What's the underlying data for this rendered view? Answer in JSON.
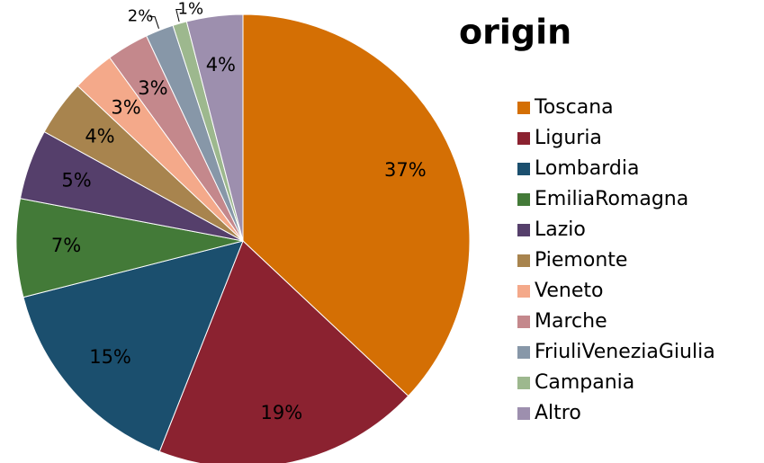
{
  "chart_data": {
    "type": "pie",
    "title": "origin",
    "categories": [
      "Toscana",
      "Liguria",
      "Lombardia",
      "EmiliaRomagna",
      "Lazio",
      "Piemonte",
      "Veneto",
      "Marche",
      "FriuliVeneziaGiulia",
      "Campania",
      "Altro"
    ],
    "values": [
      37,
      19,
      15,
      7,
      5,
      4,
      3,
      3,
      2,
      1,
      4
    ],
    "value_labels": [
      "37%",
      "19%",
      "15%",
      "7%",
      "5%",
      "4%",
      "3%",
      "3%",
      "2%",
      "1%",
      "4%"
    ],
    "colors": [
      "#d46f04",
      "#8b2230",
      "#1b4f6e",
      "#437a38",
      "#553f6b",
      "#a8844e",
      "#f4a98a",
      "#c4888c",
      "#8797a8",
      "#9db88e",
      "#9d8fae"
    ],
    "legend": "right"
  }
}
